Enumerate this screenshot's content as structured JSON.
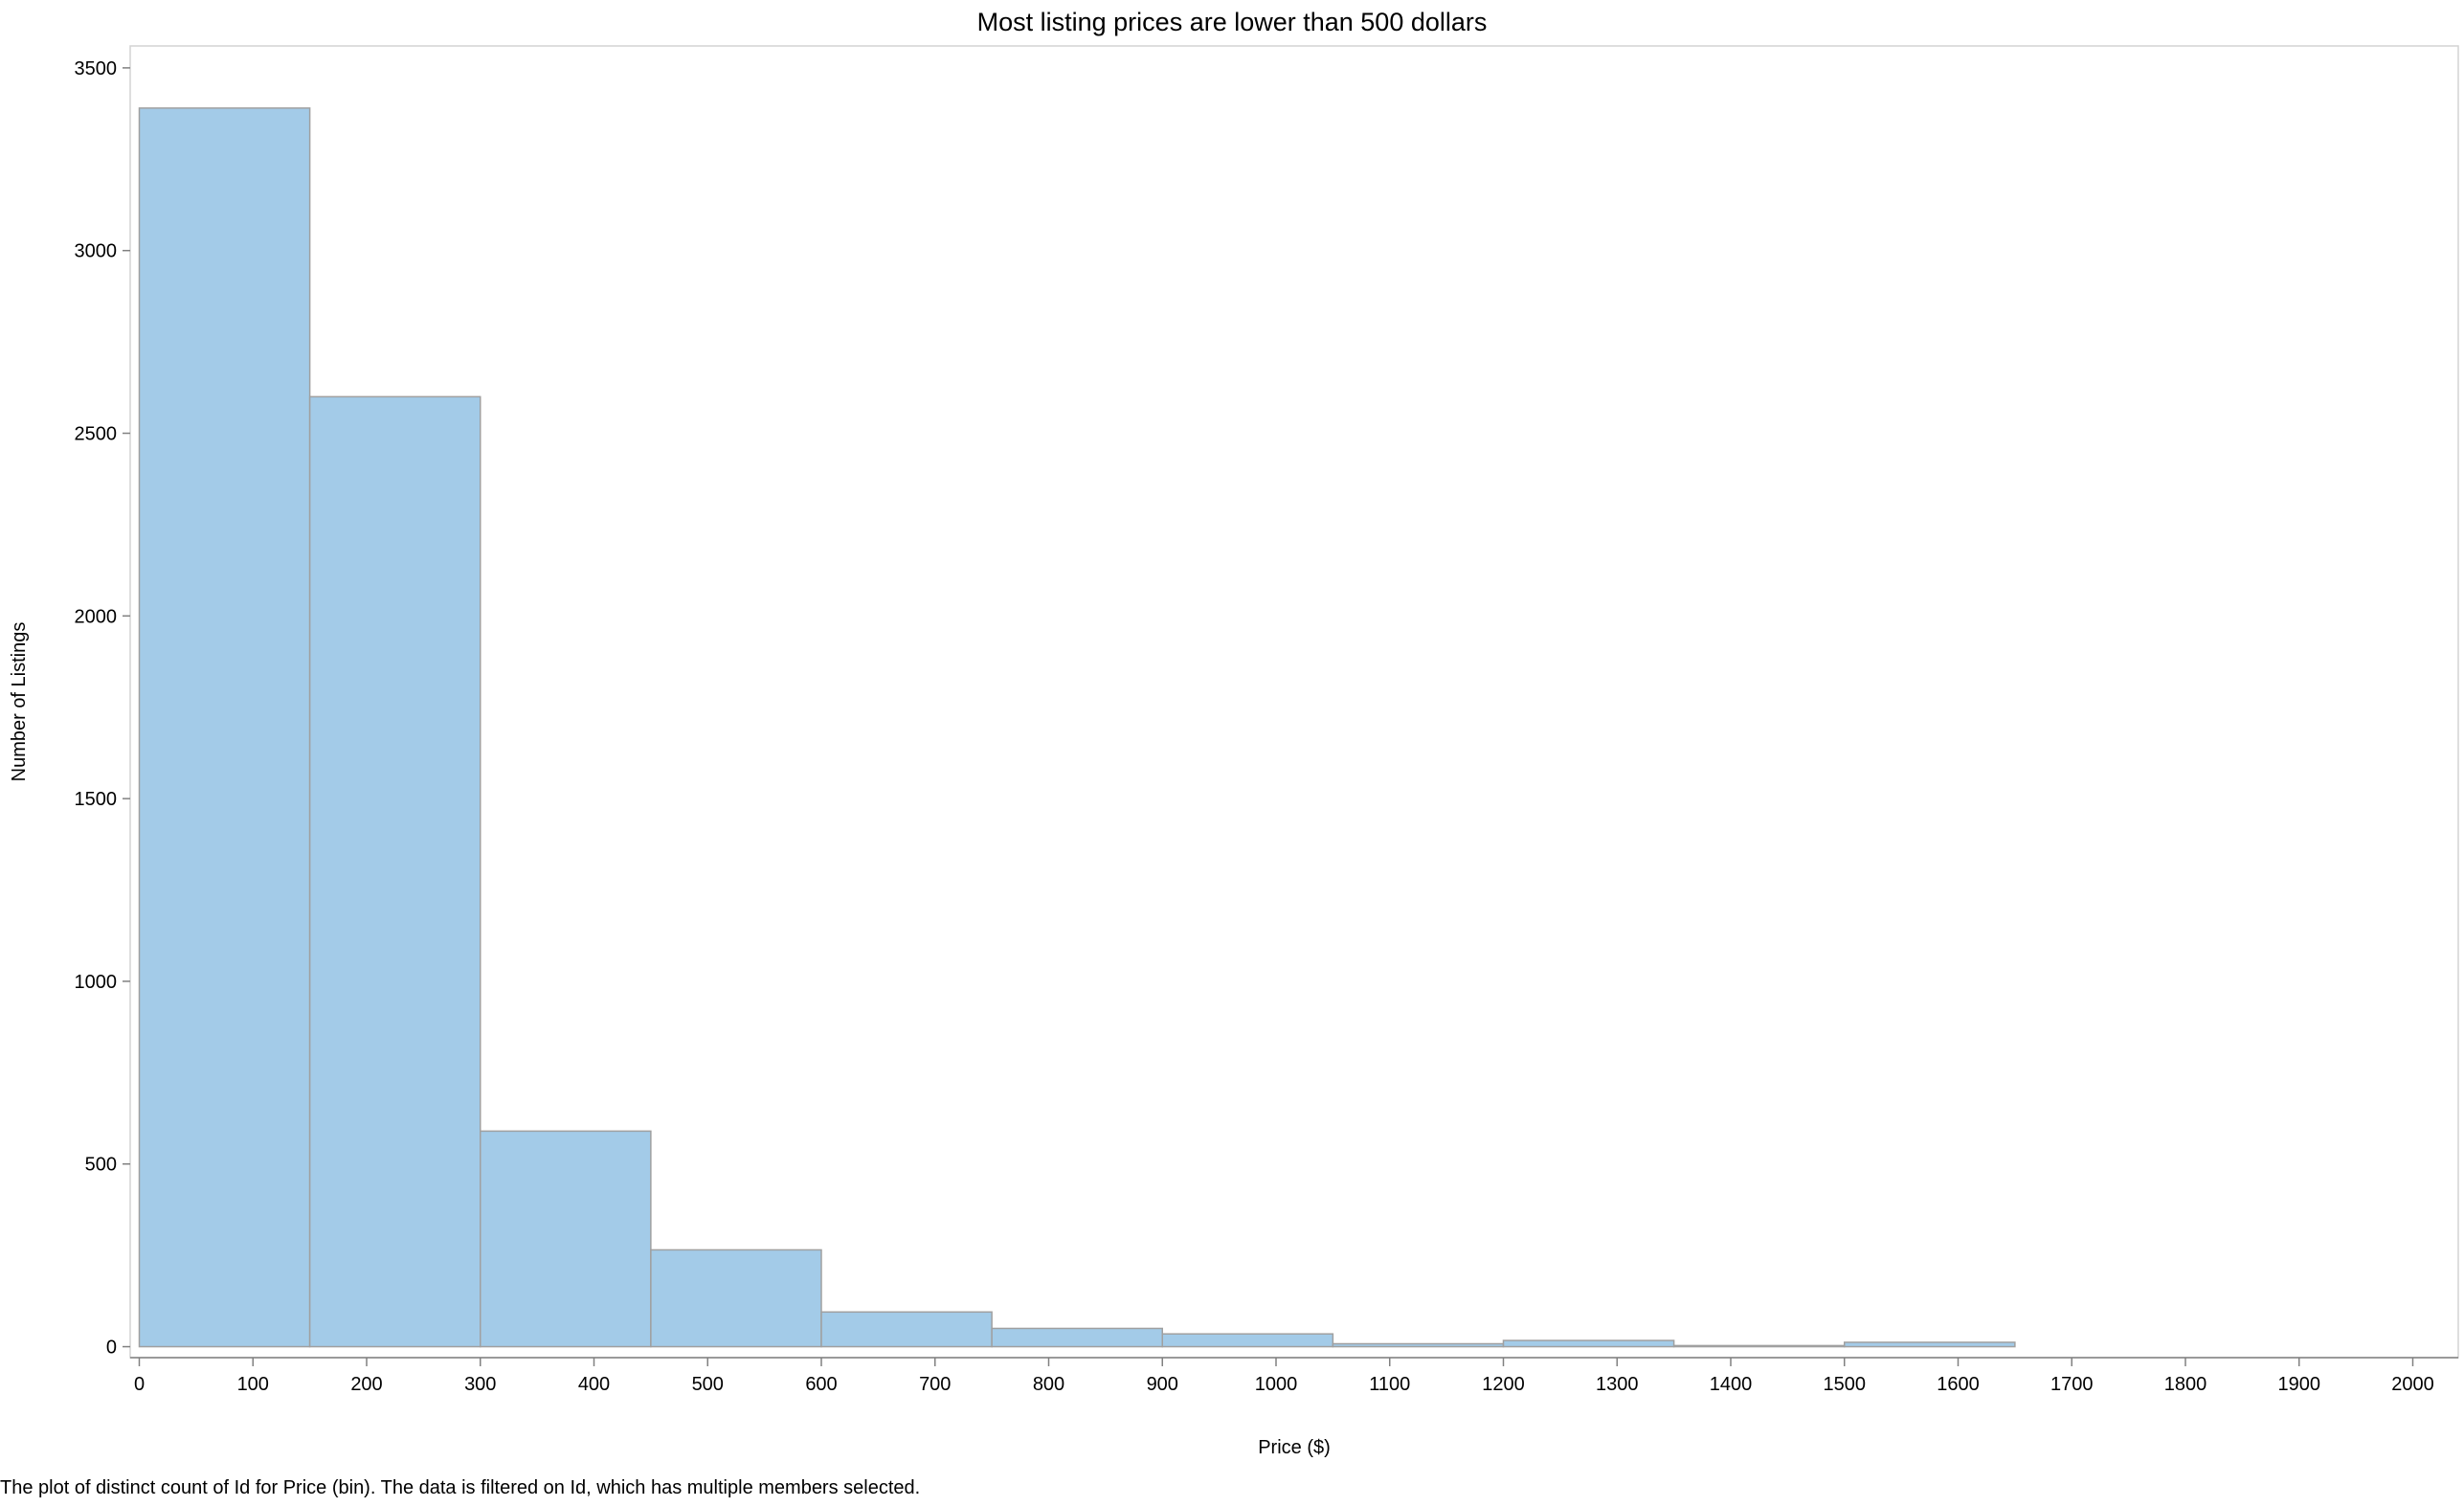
{
  "chart_data": {
    "type": "bar",
    "title": "Most listing prices are lower than 500 dollars",
    "xlabel": "Price ($)",
    "ylabel": "Number of Listings",
    "bin_width": 150,
    "bins": [
      {
        "start": 0,
        "end": 150,
        "count": 3390
      },
      {
        "start": 150,
        "end": 300,
        "count": 2600
      },
      {
        "start": 300,
        "end": 450,
        "count": 590
      },
      {
        "start": 450,
        "end": 600,
        "count": 265
      },
      {
        "start": 600,
        "end": 750,
        "count": 95
      },
      {
        "start": 750,
        "end": 900,
        "count": 50
      },
      {
        "start": 900,
        "end": 1050,
        "count": 35
      },
      {
        "start": 1050,
        "end": 1200,
        "count": 8
      },
      {
        "start": 1200,
        "end": 1350,
        "count": 17
      },
      {
        "start": 1350,
        "end": 1500,
        "count": 3
      },
      {
        "start": 1500,
        "end": 1650,
        "count": 12
      }
    ],
    "xlim": [
      -8,
      2040
    ],
    "ylim": [
      -30,
      3560
    ],
    "x_ticks": [
      0,
      100,
      200,
      300,
      400,
      500,
      600,
      700,
      800,
      900,
      1000,
      1100,
      1200,
      1300,
      1400,
      1500,
      1600,
      1700,
      1800,
      1900,
      2000
    ],
    "y_ticks": [
      0,
      500,
      1000,
      1500,
      2000,
      2500,
      3000,
      3500
    ],
    "grid": false,
    "legend": "none",
    "bar_color": "#a3cbe8",
    "bar_edge_color": "#a0a0a0"
  },
  "caption": "The plot of distinct count of Id for Price (bin). The data is filtered on Id, which has multiple members selected."
}
